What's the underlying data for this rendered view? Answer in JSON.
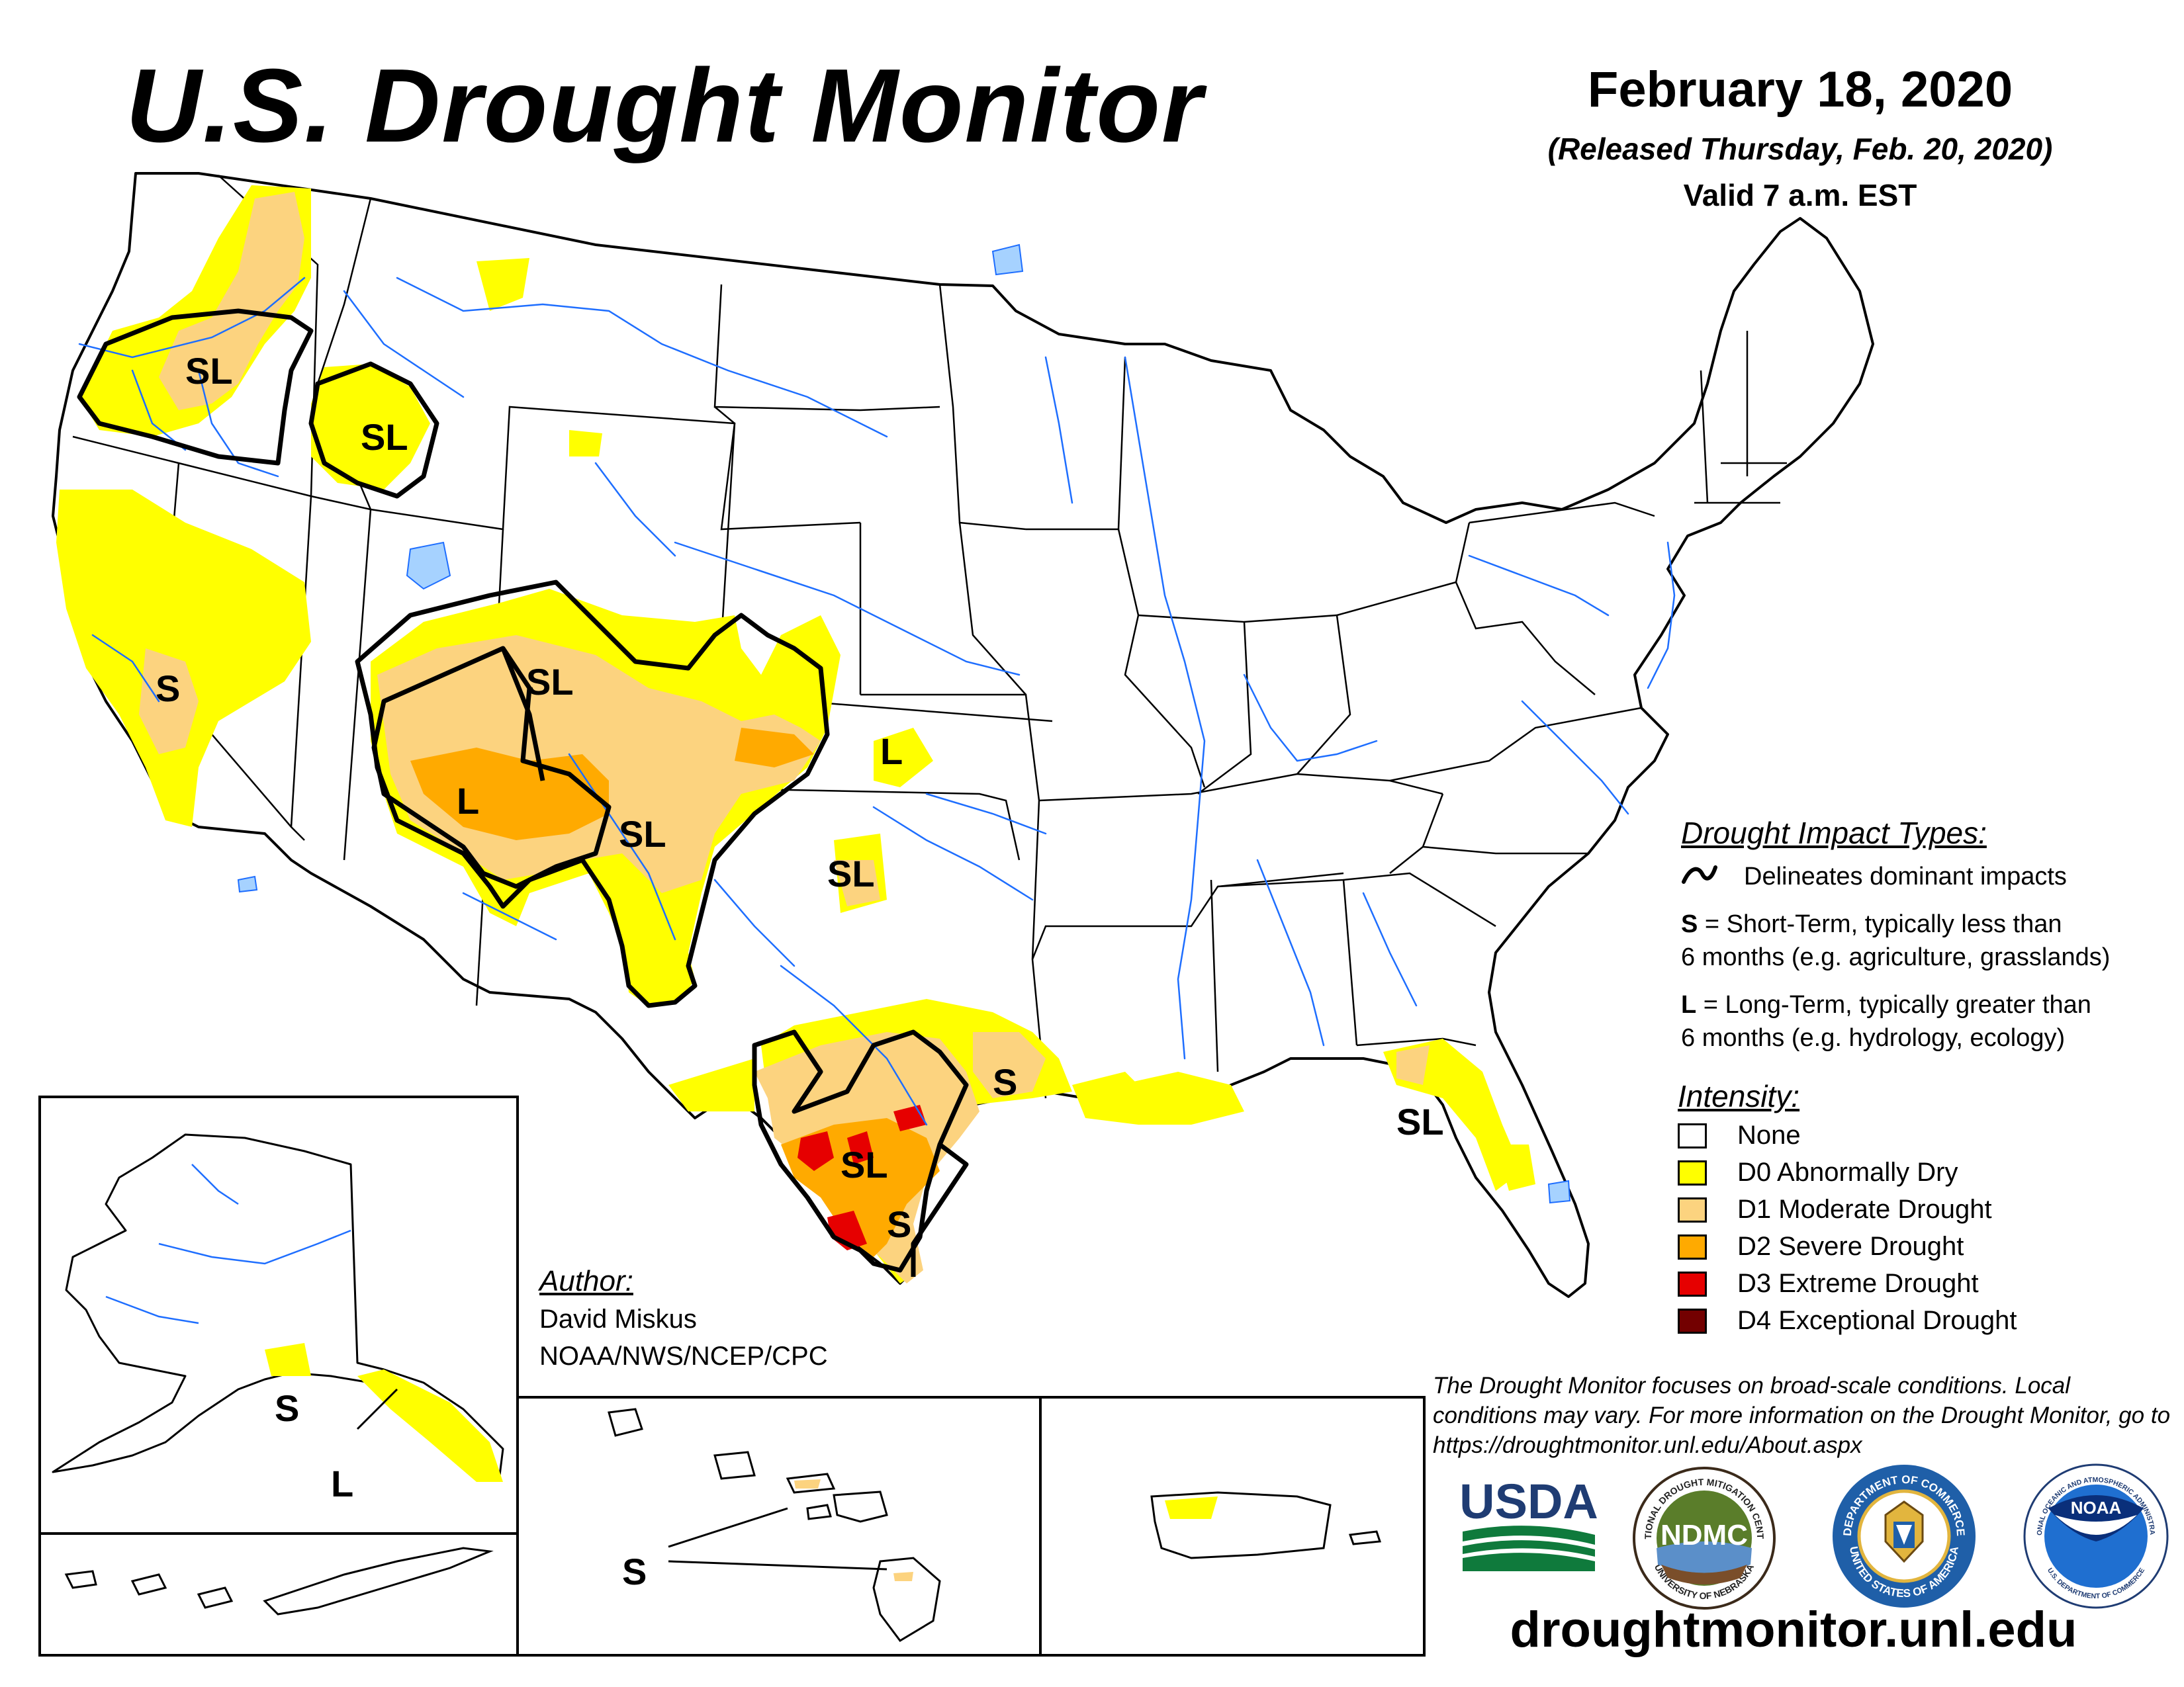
{
  "header": {
    "title": "U.S. Drought Monitor",
    "date": "February 18, 2020",
    "released": "(Released Thursday, Feb. 20, 2020)",
    "valid": "Valid 7 a.m. EST"
  },
  "map_labels": {
    "oregon": "SL",
    "idaho": "SL",
    "california": "S",
    "utah_colorado_sl": "SL",
    "four_corners_l": "L",
    "new_mexico_sl": "SL",
    "kansas_l": "L",
    "oklahoma_sl": "SL",
    "texas_sl": "SL",
    "texas_coast_s": "S",
    "texas_east_s": "S",
    "florida_sl": "SL",
    "alaska_s": "S",
    "alaska_l": "L",
    "hawaii_s": "S"
  },
  "legend": {
    "impact_heading": "Drought Impact Types:",
    "delineates": "Delineates dominant impacts",
    "short_term_key": "S",
    "short_term_1": " = Short-Term, typically less than",
    "short_term_2": "6 months (e.g. agriculture, grasslands)",
    "long_term_key": "L",
    "long_term_1": " = Long-Term, typically greater than",
    "long_term_2": "6 months (e.g. hydrology, ecology)",
    "intensity_heading": "Intensity:",
    "intensity": [
      {
        "label": "None",
        "color": "#ffffff"
      },
      {
        "label": "D0 Abnormally Dry",
        "color": "#ffff00"
      },
      {
        "label": "D1 Moderate Drought",
        "color": "#fcd37f"
      },
      {
        "label": "D2 Severe Drought",
        "color": "#ffaa00"
      },
      {
        "label": "D3 Extreme Drought",
        "color": "#e60000"
      },
      {
        "label": "D4 Exceptional Drought",
        "color": "#730000"
      }
    ]
  },
  "author": {
    "heading": "Author:",
    "name": "David Miskus",
    "org": "NOAA/NWS/NCEP/CPC"
  },
  "disclaimer": "The Drought Monitor focuses on broad-scale conditions. Local conditions may vary. For more information on the Drought Monitor, go to https://droughtmonitor.unl.edu/About.aspx",
  "logos": {
    "usda": "USDA",
    "ndmc": "NDMC",
    "ndmc_ring_top": "NATIONAL DROUGHT MITIGATION CENTER",
    "ndmc_ring_bottom": "UNIVERSITY OF NEBRASKA",
    "doc_ring_top": "DEPARTMENT OF COMMERCE",
    "doc_ring_bottom": "UNITED STATES OF AMERICA",
    "noaa": "NOAA",
    "noaa_ring_top": "NATIONAL OCEANIC AND ATMOSPHERIC ADMINISTRATION",
    "noaa_ring_bottom": "U.S. DEPARTMENT OF COMMERCE"
  },
  "website": "droughtmonitor.unl.edu",
  "colors": {
    "d0": "#ffff00",
    "d1": "#fcd37f",
    "d2": "#ffaa00",
    "d3": "#e60000",
    "d4": "#730000",
    "water": "#1e6eff",
    "lake": "#a6d2ff"
  }
}
